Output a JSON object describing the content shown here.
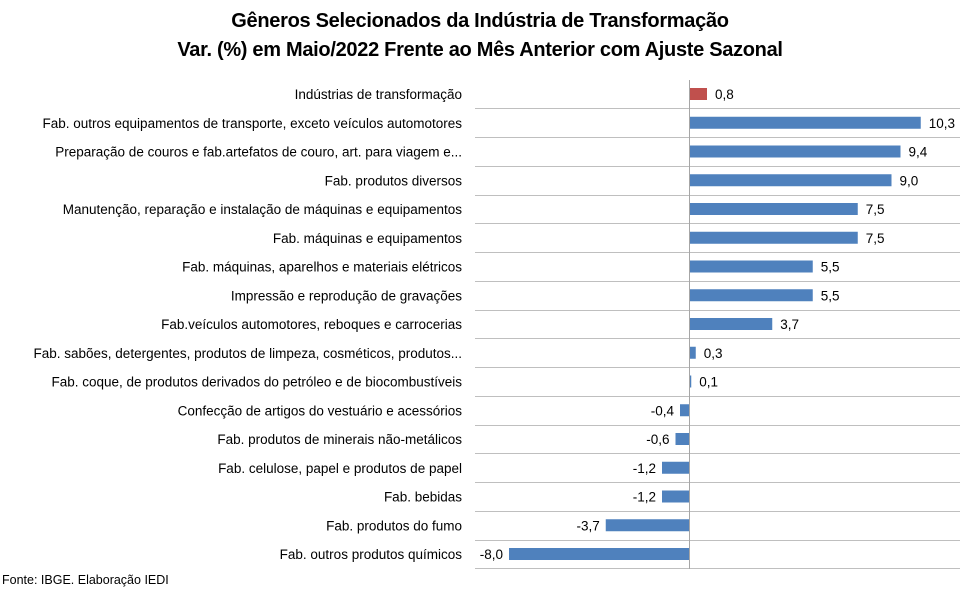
{
  "chart_data": {
    "type": "bar",
    "orientation": "horizontal",
    "title": "Gêneros Selecionados da Indústria de Transformação",
    "subtitle": "Var. (%) em Maio/2022 Frente ao Mês Anterior com Ajuste Sazonal",
    "xlabel": "",
    "ylabel": "",
    "xlim": [
      -8.0,
      10.3
    ],
    "grid": "horizontal-category-separators",
    "legend": "none",
    "categories": [
      "Indústrias de transformação",
      "Fab. outros equipamentos de transporte, exceto veículos automotores",
      "Preparação de couros e fab.artefatos de couro, art. para viagem e...",
      "Fab. produtos diversos",
      "Manutenção, reparação e instalação de máquinas e equipamentos",
      "Fab. máquinas e equipamentos",
      "Fab. máquinas, aparelhos e materiais elétricos",
      "Impressão e reprodução de gravações",
      "Fab.veículos automotores, reboques e carrocerias",
      "Fab. sabões, detergentes, produtos de limpeza, cosméticos, produtos...",
      "Fab. coque, de produtos derivados do petróleo e de biocombustíveis",
      "Confecção de artigos do vestuário e acessórios",
      "Fab. produtos de minerais não-metálicos",
      "Fab. celulose, papel e produtos de papel",
      "Fab. bebidas",
      "Fab. produtos do fumo",
      "Fab. outros produtos químicos"
    ],
    "values": [
      0.8,
      10.3,
      9.4,
      9.0,
      7.5,
      7.5,
      5.5,
      5.5,
      3.7,
      0.3,
      0.1,
      -0.4,
      -0.6,
      -1.2,
      -1.2,
      -3.7,
      -8.0
    ],
    "value_labels": [
      "0,8",
      "10,3",
      "9,4",
      "9,0",
      "7,5",
      "7,5",
      "5,5",
      "5,5",
      "3,7",
      "0,3",
      "0,1",
      "-0,4",
      "-0,6",
      "-1,2",
      "-1,2",
      "-3,7",
      "-8,0"
    ],
    "highlight_index": 0,
    "colors": {
      "default_bar": "#4F81BD",
      "highlight_bar": "#C0504D",
      "gridline": "#BFBFBF",
      "axis": "#A6A6A6"
    }
  },
  "source": "Fonte: IBGE. Elaboração IEDI"
}
